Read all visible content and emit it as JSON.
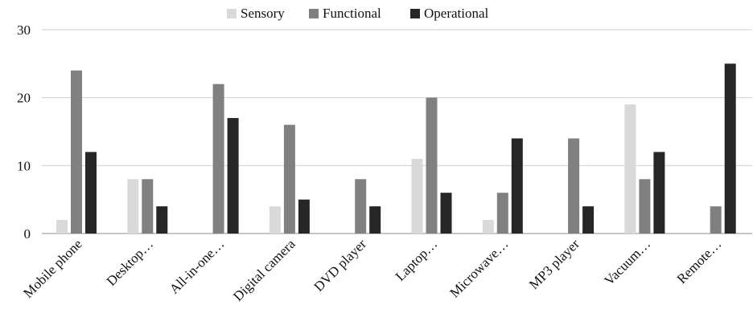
{
  "chart_data": {
    "type": "bar",
    "title": "",
    "xlabel": "",
    "ylabel": "",
    "ylim": [
      0,
      30
    ],
    "yticks": [
      0,
      10,
      20,
      30
    ],
    "grid": true,
    "legend_position": "top",
    "categories": [
      "Mobile phone",
      "Desktop…",
      "All-in-one…",
      "Digital camera",
      "DVD player",
      "Laptop…",
      "Microwave…",
      "MP3 player",
      "Vacuum…",
      "Remote…"
    ],
    "series": [
      {
        "name": "Sensory",
        "color": "#d9d9d9",
        "values": [
          2,
          8,
          0,
          4,
          0,
          11,
          2,
          0,
          19,
          0
        ]
      },
      {
        "name": "Functional",
        "color": "#808080",
        "values": [
          24,
          8,
          22,
          16,
          8,
          20,
          6,
          14,
          8,
          4
        ]
      },
      {
        "name": "Operational",
        "color": "#262626",
        "values": [
          12,
          4,
          17,
          5,
          4,
          6,
          14,
          4,
          12,
          25
        ]
      }
    ]
  }
}
